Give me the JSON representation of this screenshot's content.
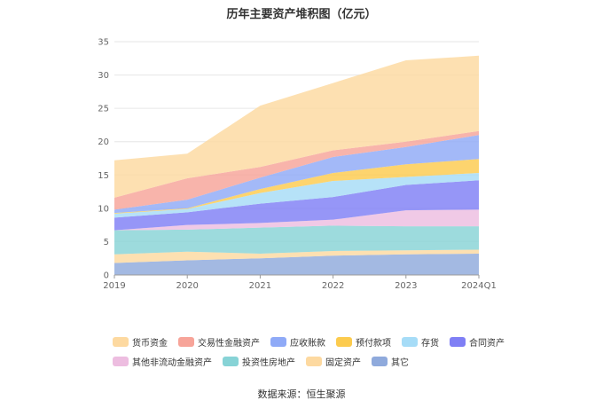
{
  "chart_data": {
    "type": "area",
    "stacked": true,
    "title": "历年主要资产堆积图（亿元）",
    "source": "数据来源：恒生聚源",
    "categories": [
      "2019",
      "2020",
      "2021",
      "2022",
      "2023",
      "2024Q1"
    ],
    "ylim": [
      0,
      35
    ],
    "yticks": [
      0,
      5,
      10,
      15,
      20,
      25,
      30,
      35
    ],
    "grid": true,
    "legend_position": "bottom",
    "series": [
      {
        "name": "其它",
        "color": "#8faadc",
        "values": [
          1.8,
          2.2,
          2.5,
          2.9,
          3.1,
          3.2
        ]
      },
      {
        "name": "固定资产",
        "color": "#fdd9a0",
        "values": [
          1.3,
          1.3,
          0.7,
          0.7,
          0.6,
          0.6
        ]
      },
      {
        "name": "投资性房地产",
        "color": "#87d3d6",
        "values": [
          3.6,
          3.3,
          3.9,
          3.8,
          3.6,
          3.5
        ]
      },
      {
        "name": "其他非流动金融资产",
        "color": "#edbde0",
        "values": [
          0.0,
          0.7,
          0.7,
          0.9,
          2.4,
          2.5
        ]
      },
      {
        "name": "合同资产",
        "color": "#7f7ff5",
        "values": [
          1.9,
          1.9,
          2.9,
          3.4,
          3.8,
          4.4
        ]
      },
      {
        "name": "存货",
        "color": "#a6dcf7",
        "values": [
          0.6,
          0.5,
          1.6,
          2.4,
          1.2,
          1.1
        ]
      },
      {
        "name": "预付款项",
        "color": "#fccb4e",
        "values": [
          0.1,
          0.1,
          0.6,
          1.2,
          1.9,
          2.1
        ]
      },
      {
        "name": "应收账款",
        "color": "#8faaf7",
        "values": [
          0.5,
          1.3,
          1.7,
          2.4,
          2.6,
          3.6
        ]
      },
      {
        "name": "交易性金融资产",
        "color": "#f7a499",
        "values": [
          1.8,
          3.2,
          1.6,
          1.0,
          0.8,
          0.6
        ]
      },
      {
        "name": "货币资金",
        "color": "#fdd9a0",
        "values": [
          5.6,
          3.7,
          9.2,
          10.1,
          12.2,
          11.3
        ]
      }
    ]
  },
  "legend_order": [
    "货币资金",
    "交易性金融资产",
    "应收账款",
    "预付款项",
    "存货",
    "合同资产",
    "其他非流动金融资产",
    "投资性房地产",
    "固定资产",
    "其它"
  ]
}
